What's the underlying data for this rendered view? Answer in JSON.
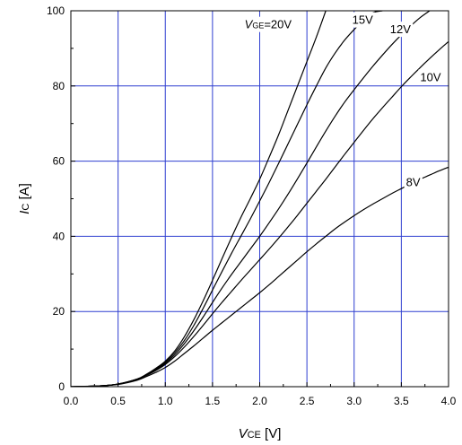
{
  "chart_data": {
    "type": "line",
    "xlabel": {
      "var": "V",
      "sub": "CE",
      "unit": " [V]"
    },
    "ylabel": {
      "var": "I",
      "sub": "C",
      "unit": " [A]"
    },
    "xlim": [
      0,
      4
    ],
    "ylim": [
      0,
      100
    ],
    "xticks": [
      "0.0",
      "0.5",
      "1.0",
      "1.5",
      "2.0",
      "2.5",
      "3.0",
      "3.5",
      "4.0"
    ],
    "yticks": [
      "0",
      "20",
      "40",
      "60",
      "80",
      "100"
    ],
    "grid": true,
    "colors": {
      "grid": "#2f3fd0",
      "curve": "#000000",
      "axes": "#000000"
    },
    "series": [
      {
        "name": "VGE=20V",
        "label": {
          "var": "V",
          "sub": "GE",
          "text": "=20V"
        },
        "x": [
          0,
          0.3,
          0.5,
          0.7,
          0.8,
          0.9,
          1.0,
          1.1,
          1.2,
          1.3,
          1.4,
          1.5,
          1.6,
          1.7,
          1.8,
          1.9,
          2.0,
          2.1,
          2.2,
          2.3,
          2.4,
          2.5,
          2.6,
          2.7
        ],
        "y": [
          0,
          0.2,
          0.7,
          2.0,
          3.3,
          4.9,
          6.8,
          9.5,
          13.2,
          17.7,
          22.8,
          28.3,
          34.0,
          39.6,
          45.0,
          50.0,
          55.2,
          61.0,
          67.0,
          73.5,
          80.0,
          86.5,
          93.0,
          100
        ]
      },
      {
        "name": "15V",
        "x": [
          0,
          0.3,
          0.5,
          0.7,
          0.8,
          0.9,
          1.0,
          1.1,
          1.2,
          1.3,
          1.4,
          1.5,
          1.6,
          1.7,
          1.8,
          1.9,
          2.0,
          2.1,
          2.2,
          2.3,
          2.4,
          2.5,
          2.6,
          2.7,
          2.8,
          2.9,
          3.0,
          3.1,
          3.2,
          3.3
        ],
        "y": [
          0,
          0.2,
          0.7,
          2.0,
          3.2,
          4.7,
          6.5,
          9.0,
          12.2,
          16.2,
          20.8,
          25.7,
          30.6,
          35.4,
          40.0,
          44.6,
          49.4,
          54.3,
          59.4,
          64.6,
          69.8,
          75.0,
          80.0,
          84.8,
          88.8,
          92.2,
          95.0,
          97.5,
          99.5,
          100
        ]
      },
      {
        "name": "12V",
        "x": [
          0,
          0.3,
          0.5,
          0.7,
          0.8,
          0.9,
          1.0,
          1.1,
          1.2,
          1.3,
          1.4,
          1.5,
          1.6,
          1.7,
          1.8,
          1.9,
          2.0,
          2.1,
          2.2,
          2.3,
          2.4,
          2.5,
          2.6,
          2.7,
          2.8,
          2.9,
          3.0,
          3.1,
          3.2,
          3.3,
          3.4,
          3.5,
          3.6,
          3.7,
          3.8
        ],
        "y": [
          0,
          0.2,
          0.7,
          2.0,
          3.1,
          4.5,
          6.2,
          8.5,
          11.4,
          14.8,
          18.5,
          22.4,
          26.2,
          29.8,
          33.2,
          36.6,
          40.0,
          43.6,
          47.3,
          51.2,
          55.3,
          59.5,
          63.8,
          68.0,
          72.0,
          75.7,
          79.0,
          82.2,
          85.3,
          88.2,
          91.0,
          93.6,
          96.0,
          98.2,
          100
        ]
      },
      {
        "name": "10V",
        "x": [
          0,
          0.3,
          0.5,
          0.7,
          0.8,
          0.9,
          1.0,
          1.1,
          1.2,
          1.3,
          1.4,
          1.5,
          1.6,
          1.7,
          1.8,
          1.9,
          2.0,
          2.1,
          2.2,
          2.3,
          2.4,
          2.5,
          2.6,
          2.7,
          2.8,
          2.9,
          3.0,
          3.1,
          3.2,
          3.3,
          3.4,
          3.5,
          3.6,
          3.7,
          3.8,
          3.9,
          4.0
        ],
        "y": [
          0,
          0.2,
          0.7,
          1.9,
          3.0,
          4.3,
          5.9,
          8.0,
          10.5,
          13.3,
          16.3,
          19.4,
          22.4,
          25.3,
          28.2,
          31.0,
          33.8,
          36.6,
          39.5,
          42.5,
          45.6,
          48.8,
          52.0,
          55.2,
          58.5,
          61.8,
          65.0,
          68.2,
          71.3,
          74.2,
          77.0,
          79.8,
          82.4,
          84.9,
          87.3,
          89.6,
          91.8
        ]
      },
      {
        "name": "8V",
        "x": [
          0,
          0.3,
          0.5,
          0.7,
          0.8,
          0.9,
          1.0,
          1.1,
          1.2,
          1.3,
          1.4,
          1.5,
          1.6,
          1.7,
          1.8,
          1.9,
          2.0,
          2.1,
          2.2,
          2.3,
          2.4,
          2.5,
          2.6,
          2.7,
          2.8,
          2.9,
          3.0,
          3.1,
          3.2,
          3.3,
          3.4,
          3.5,
          3.6,
          3.7,
          3.8,
          3.9,
          4.0
        ],
        "y": [
          0,
          0.2,
          0.6,
          1.7,
          2.7,
          3.8,
          5.1,
          6.8,
          8.8,
          10.8,
          12.9,
          15.0,
          17.0,
          19.0,
          21.0,
          23.0,
          25.0,
          27.1,
          29.3,
          31.5,
          33.7,
          35.9,
          38.0,
          40.0,
          42.0,
          43.8,
          45.5,
          47.1,
          48.6,
          50.0,
          51.4,
          52.7,
          54.0,
          55.2,
          56.3,
          57.4,
          58.4
        ]
      }
    ]
  }
}
